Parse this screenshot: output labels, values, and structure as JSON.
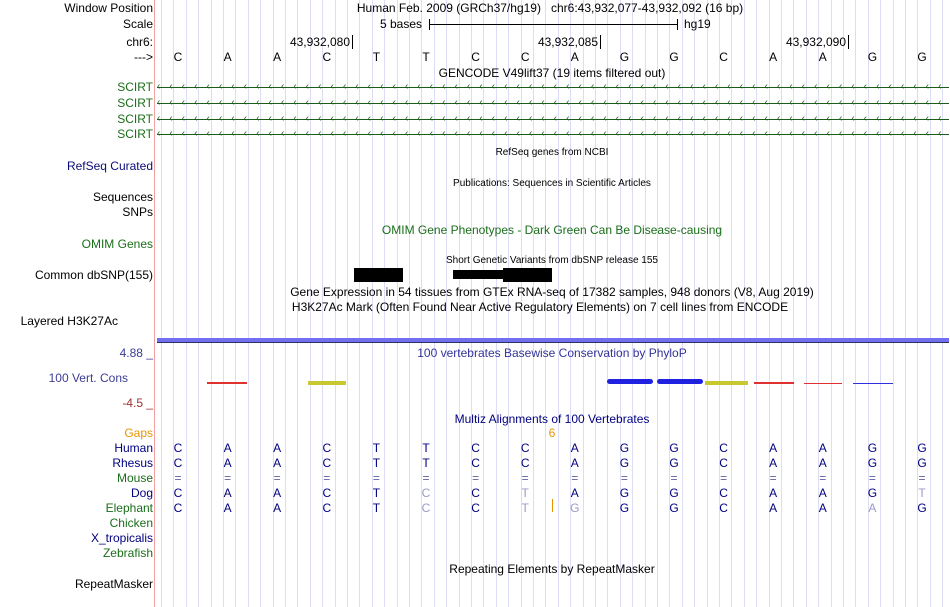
{
  "labels": {
    "window_position": "Window Position",
    "scale": "Scale",
    "chr": "chr6:",
    "strand": "--->",
    "scirt": "SCIRT",
    "refseq": "RefSeq Curated",
    "sequences": "Sequences",
    "snps": "SNPs",
    "omim": "OMIM Genes",
    "dbsnp": "Common dbSNP(155)",
    "layered": "Layered H3K27Ac",
    "cons_max": "4.88 _",
    "cons": "100 Vert. Cons",
    "cons_min": "-4.5 _",
    "gaps": "Gaps",
    "repeatmasker": "RepeatMasker"
  },
  "header": {
    "assembly": "Human Feb. 2009 (GRCh37/hg19)",
    "position": "chr6:43,932,077-43,932,092 (16 bp)",
    "scale": "5 bases",
    "db": "hg19",
    "ticks": [
      "43,932,080",
      "43,932,085",
      "43,932,090"
    ]
  },
  "sequence": [
    "C",
    "A",
    "A",
    "C",
    "T",
    "T",
    "C",
    "C",
    "A",
    "G",
    "G",
    "C",
    "A",
    "A",
    "G",
    "G"
  ],
  "tracks": {
    "gencode": "GENCODE V49lift37 (19 items filtered out)",
    "refseq": "RefSeq genes from NCBI",
    "pubs": "Publications: Sequences in Scientific Articles",
    "omim": "OMIM Gene Phenotypes - Dark Green Can Be Disease-causing",
    "snp": "Short Genetic Variants from dbSNP release 155",
    "gtex": "Gene Expression in 54 tissues from GTEx RNA-seq of 17382 samples, 948 donors (V8, Aug 2019)",
    "h3k27ac": "H3K27Ac Mark (Often Found Near Active Regulatory Elements) on 7 cell lines from ENCODE",
    "phylop": "100 vertebrates Basewise Conservation by PhyloP",
    "multiz": "Multiz Alignments of 100 Vertebrates",
    "gap_count": "6",
    "rmsk": "Repeating Elements by RepeatMasker"
  },
  "species": [
    {
      "name": "Human",
      "bases": "CAACTTCCAGGCAAGG",
      "faint": ""
    },
    {
      "name": "Rhesus",
      "bases": "CAACTTCCAGGCAAGG",
      "faint": ""
    },
    {
      "name": "Mouse",
      "bases": "================",
      "faint": ""
    },
    {
      "name": "Dog",
      "bases": "CAACTCCTAGGCAAGT",
      "faint": "5,7,15"
    },
    {
      "name": "Elephant",
      "bases": "CAACTCCTGGGCAAAG",
      "faint": "5,7,8,14"
    },
    {
      "name": "Chicken",
      "bases": "",
      "faint": ""
    },
    {
      "name": "X_tropicalis",
      "bases": "",
      "faint": ""
    },
    {
      "name": "Zebrafish",
      "bases": "",
      "faint": ""
    }
  ],
  "colors": {
    "green": "#1a6e1a",
    "navy": "#000080",
    "orange": "#e69500",
    "phylop": "#333399",
    "cons_label": "#3c3c96"
  }
}
